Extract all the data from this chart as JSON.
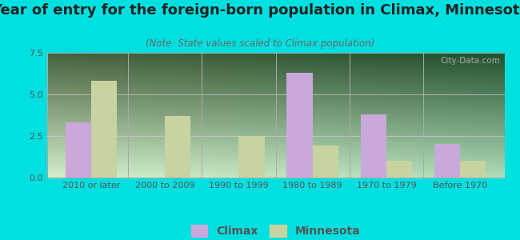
{
  "title": "Year of entry for the foreign-born population in Climax, Minnesota",
  "subtitle": "(Note: State values scaled to Climax population)",
  "categories": [
    "2010 or later",
    "2000 to 2009",
    "1990 to 1999",
    "1980 to 1989",
    "1970 to 1979",
    "Before 1970"
  ],
  "climax_values": [
    3.3,
    0,
    0,
    6.3,
    3.8,
    2.0
  ],
  "minnesota_values": [
    5.8,
    3.7,
    2.5,
    1.9,
    1.0,
    1.0
  ],
  "climax_color": "#c9a8dc",
  "minnesota_color": "#c8d4a0",
  "background_outer": "#00e0e0",
  "ylim": [
    0,
    7.5
  ],
  "yticks": [
    0,
    2.5,
    5,
    7.5
  ],
  "bar_width": 0.35,
  "legend_labels": [
    "Climax",
    "Minnesota"
  ],
  "title_fontsize": 13,
  "subtitle_fontsize": 8.5,
  "tick_fontsize": 8,
  "legend_fontsize": 10
}
